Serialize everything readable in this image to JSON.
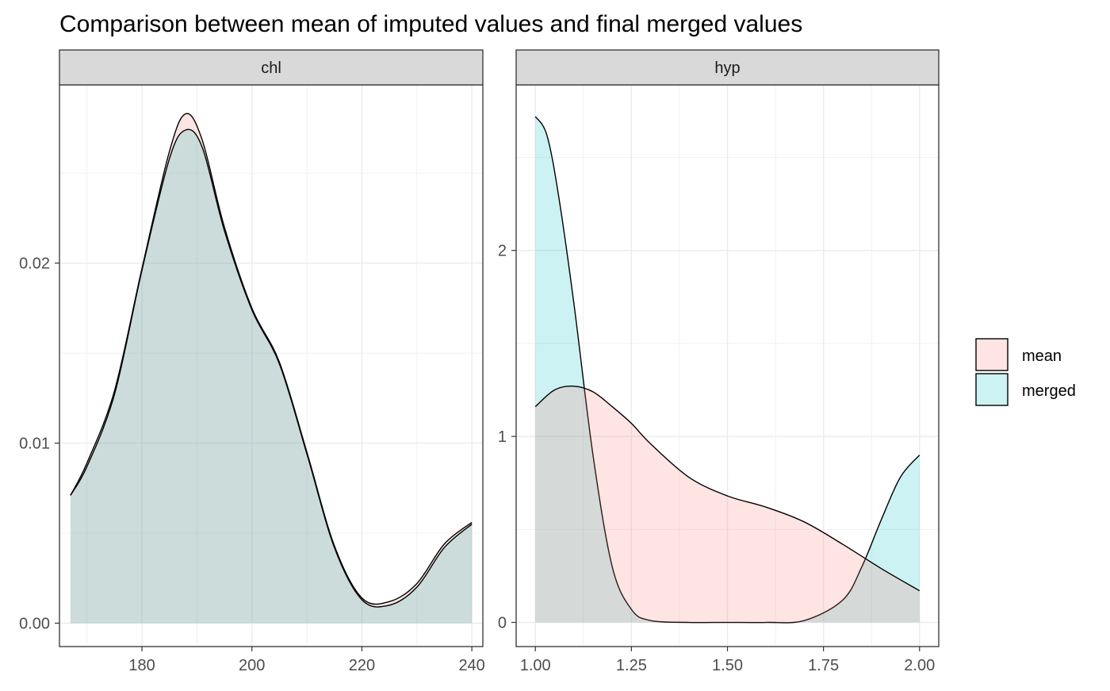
{
  "chart_data": {
    "type": "area",
    "title": "Comparison between mean of imputed values and final merged values",
    "colors": {
      "mean": "#F8766D",
      "merged": "#00BFC4",
      "strip": "#D9D9D9",
      "grid": "#EBEBEB",
      "outline": "#000000"
    },
    "legend": {
      "position": "right",
      "entries": [
        {
          "label": "mean",
          "color": "#F8766D"
        },
        {
          "label": "merged",
          "color": "#00BFC4"
        }
      ]
    },
    "grid": true,
    "panels": [
      {
        "strip_label": "chl",
        "xlim": [
          165,
          242
        ],
        "ylim": [
          -0.0013,
          0.0299
        ],
        "x_ticks": [
          180,
          200,
          220,
          240
        ],
        "x_tick_labels": [
          "180",
          "200",
          "220",
          "240"
        ],
        "y_ticks": [
          0,
          0.01,
          0.02
        ],
        "y_tick_labels": [
          "0.00",
          "0.01",
          "0.02"
        ],
        "series": [
          {
            "name": "mean",
            "x": [
              167,
              170,
              175,
              180,
              185,
              188,
              191,
              195,
              200,
              205,
              210,
              215,
              220,
              225,
              230,
              235,
              240
            ],
            "y": [
              0.0071,
              0.0089,
              0.0129,
              0.0197,
              0.0262,
              0.0283,
              0.0268,
              0.022,
              0.0175,
              0.0145,
              0.0095,
              0.0043,
              0.0014,
              0.0012,
              0.0022,
              0.0044,
              0.0056
            ]
          },
          {
            "name": "merged",
            "x": [
              167,
              170,
              175,
              180,
              185,
              188,
              191,
              195,
              200,
              205,
              210,
              215,
              220,
              225,
              230,
              235,
              240
            ],
            "y": [
              0.0071,
              0.0087,
              0.0127,
              0.0196,
              0.0258,
              0.0274,
              0.0264,
              0.0218,
              0.0174,
              0.0144,
              0.0094,
              0.0042,
              0.0013,
              0.001,
              0.002,
              0.0042,
              0.0055
            ]
          }
        ]
      },
      {
        "strip_label": "hyp",
        "xlim": [
          0.95,
          2.05
        ],
        "ylim": [
          -0.13,
          2.89
        ],
        "x_ticks": [
          1.0,
          1.25,
          1.5,
          1.75,
          2.0
        ],
        "x_tick_labels": [
          "1.00",
          "1.25",
          "1.50",
          "1.75",
          "2.00"
        ],
        "y_ticks": [
          0,
          1,
          2
        ],
        "y_tick_labels": [
          "0",
          "1",
          "2"
        ],
        "series": [
          {
            "name": "mean",
            "x": [
              1.0,
              1.05,
              1.1,
              1.15,
              1.2,
              1.25,
              1.3,
              1.4,
              1.5,
              1.6,
              1.7,
              1.8,
              1.9,
              2.0
            ],
            "y": [
              1.16,
              1.25,
              1.27,
              1.24,
              1.16,
              1.07,
              0.96,
              0.78,
              0.68,
              0.62,
              0.54,
              0.42,
              0.29,
              0.17
            ]
          },
          {
            "name": "merged",
            "x": [
              1.0,
              1.03,
              1.06,
              1.1,
              1.15,
              1.2,
              1.25,
              1.3,
              1.4,
              1.5,
              1.6,
              1.7,
              1.8,
              1.85,
              1.9,
              1.95,
              2.0
            ],
            "y": [
              2.72,
              2.62,
              2.3,
              1.72,
              0.9,
              0.3,
              0.07,
              0.01,
              0.0,
              0.0,
              0.0,
              0.01,
              0.12,
              0.3,
              0.55,
              0.78,
              0.9
            ]
          }
        ]
      }
    ]
  }
}
